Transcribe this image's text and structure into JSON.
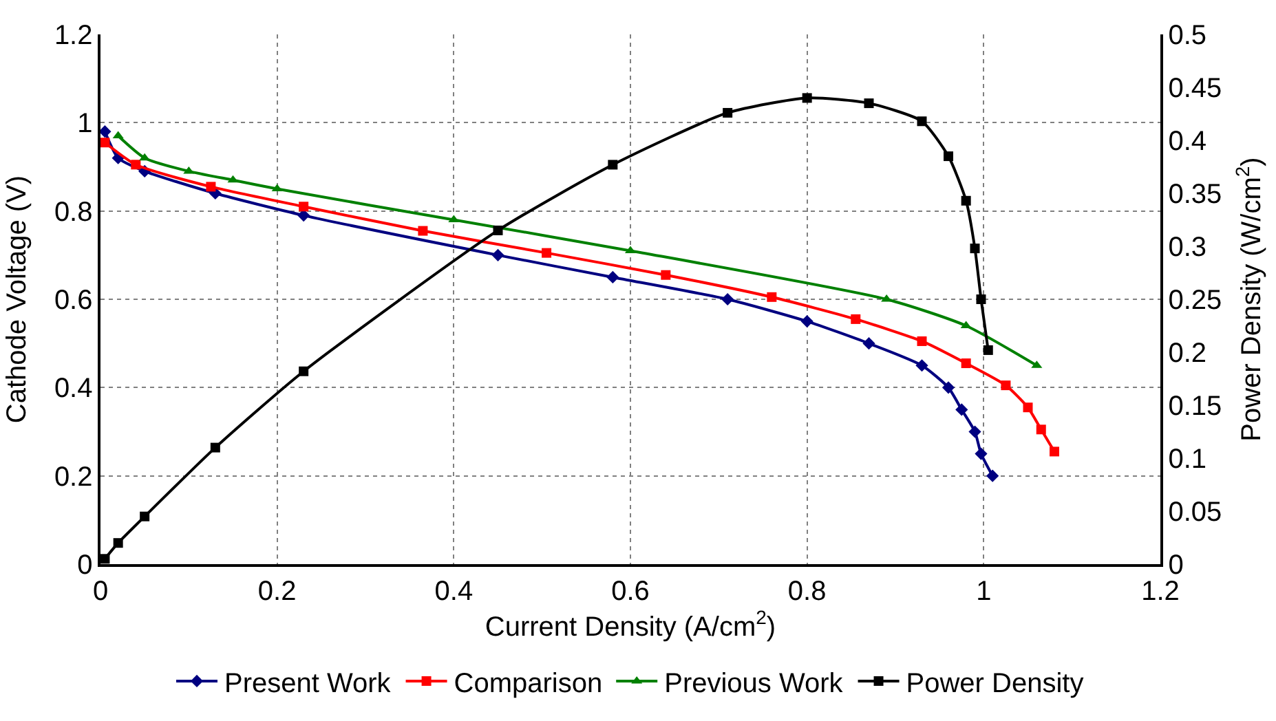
{
  "chart_data": {
    "type": "line",
    "xlabel": "Current Density (A/cm$^{2}$)",
    "ylabel": "Cathode Voltage (V)",
    "y2label": "Power Density (W/cm$^{2}$)",
    "xlim": [
      0,
      1.2
    ],
    "xticks": [
      0,
      0.2,
      0.4,
      0.6,
      0.8,
      1,
      1.2
    ],
    "ylim": [
      0,
      1.2
    ],
    "yticks": [
      0,
      0.2,
      0.4,
      0.6,
      0.8,
      1,
      1.2
    ],
    "y2lim": [
      0,
      0.5
    ],
    "y2ticks": [
      0,
      0.05,
      0.1,
      0.15,
      0.2,
      0.25,
      0.3,
      0.35,
      0.4,
      0.45,
      0.5
    ],
    "grid": true,
    "legend": "bottom",
    "line_style": "solid",
    "series": [
      {
        "name": "Present Work",
        "color": "#000080",
        "marker": "diamond",
        "x": [
          0.005,
          0.02,
          0.05,
          0.13,
          0.23,
          0.45,
          0.58,
          0.71,
          0.8,
          0.87,
          0.93,
          0.96,
          0.975,
          0.99,
          0.997,
          1.01
        ],
        "values": [
          0.98,
          0.92,
          0.89,
          0.84,
          0.79,
          0.7,
          0.65,
          0.6,
          0.55,
          0.5,
          0.45,
          0.4,
          0.35,
          0.3,
          0.25,
          0.2
        ]
      },
      {
        "name": "Comparison",
        "color": "#ff0000",
        "marker": "square",
        "x": [
          0.005,
          0.04,
          0.125,
          0.23,
          0.365,
          0.505,
          0.64,
          0.76,
          0.855,
          0.93,
          0.98,
          1.025,
          1.05,
          1.065,
          1.08
        ],
        "values": [
          0.955,
          0.905,
          0.855,
          0.81,
          0.755,
          0.705,
          0.655,
          0.605,
          0.555,
          0.505,
          0.455,
          0.405,
          0.355,
          0.305,
          0.255
        ]
      },
      {
        "name": "Previous Work",
        "color": "#008000",
        "marker": "triangle",
        "x": [
          0.02,
          0.05,
          0.1,
          0.15,
          0.2,
          0.4,
          0.6,
          0.89,
          0.98,
          1.06
        ],
        "values": [
          0.97,
          0.92,
          0.89,
          0.87,
          0.85,
          0.78,
          0.71,
          0.6,
          0.54,
          0.45
        ]
      },
      {
        "name": "Power Density",
        "color": "#000000",
        "marker": "square",
        "axis": "y2",
        "x": [
          0.005,
          0.02,
          0.05,
          0.13,
          0.23,
          0.45,
          0.58,
          0.71,
          0.8,
          0.87,
          0.93,
          0.96,
          0.98,
          0.99,
          0.997,
          1.005
        ],
        "values": [
          0.005,
          0.02,
          0.045,
          0.11,
          0.182,
          0.315,
          0.377,
          0.426,
          0.44,
          0.435,
          0.418,
          0.385,
          0.343,
          0.298,
          0.25,
          0.202
        ]
      }
    ]
  }
}
